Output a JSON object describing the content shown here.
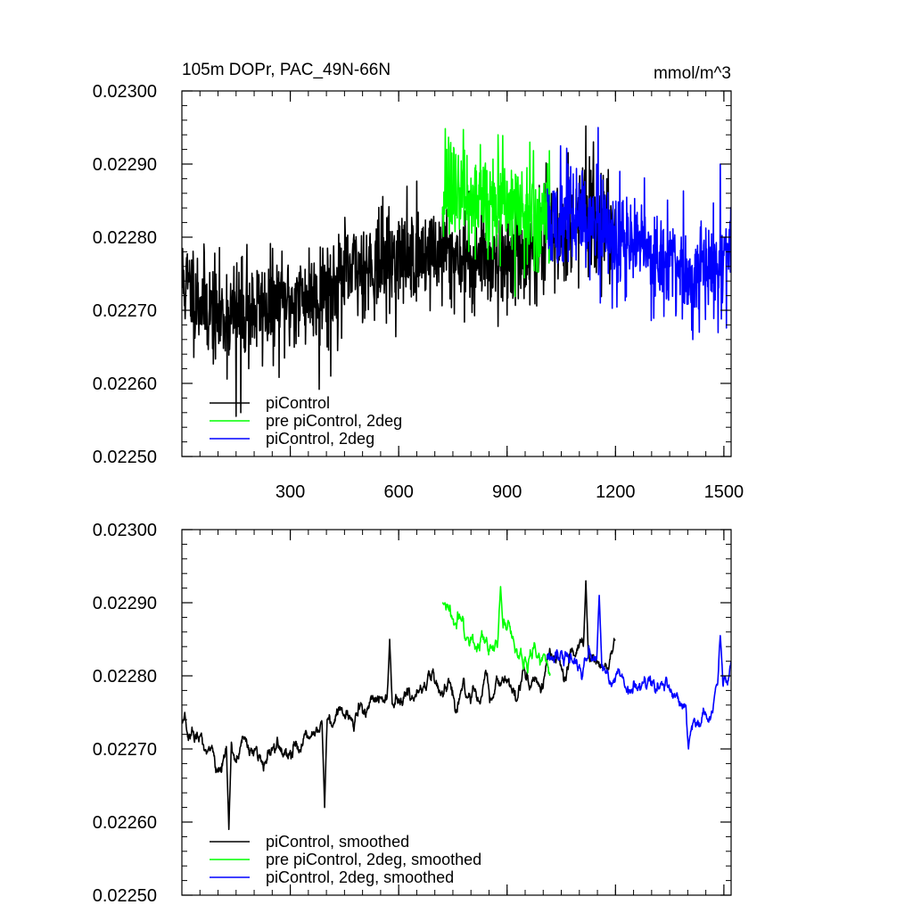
{
  "figure": {
    "title_left": "105m DOPr, PAC_49N-66N",
    "title_right": "mmol/m^3"
  },
  "chart_data": [
    {
      "type": "line",
      "panel": "top",
      "xlim": [
        0,
        1520
      ],
      "ylim": [
        0.0225,
        0.023
      ],
      "x_major_ticks": [
        300,
        600,
        900,
        1200,
        1500
      ],
      "x_tick_labels": [
        "300",
        "600",
        "900",
        "1200",
        "1500"
      ],
      "x_minor_step": 50,
      "y_major_ticks": [
        0.0225,
        0.0226,
        0.0227,
        0.0228,
        0.0229,
        0.023
      ],
      "y_tick_labels": [
        "0.02250",
        "0.02260",
        "0.02270",
        "0.02280",
        "0.02290",
        "0.02300"
      ],
      "y_minor_step": 2e-05,
      "legend": [
        "piControl",
        "pre piControl, 2deg",
        "piControl, 2deg"
      ],
      "legend_position": "bottom-left",
      "series": [
        {
          "name": "piControl",
          "color": "#000000",
          "x_range": [
            1,
            1200
          ],
          "anchors": [
            [
              1,
              0.02274
            ],
            [
              100,
              0.02269
            ],
            [
              200,
              0.0227
            ],
            [
              300,
              0.02271
            ],
            [
              400,
              0.02273
            ],
            [
              500,
              0.02276
            ],
            [
              600,
              0.02277
            ],
            [
              700,
              0.02278
            ],
            [
              800,
              0.02277
            ],
            [
              900,
              0.02277
            ],
            [
              1000,
              0.02279
            ],
            [
              1100,
              0.02283
            ],
            [
              1200,
              0.02281
            ]
          ],
          "noise": 3.5e-05,
          "extremes": [
            [
              150,
              0.022555
            ],
            [
              163,
              0.02256
            ],
            [
              380,
              0.022592
            ],
            [
              180,
              0.02279
            ],
            [
              412,
              0.02261
            ],
            [
              1118,
              0.022952
            ],
            [
              1128,
              0.02291
            ]
          ]
        },
        {
          "name": "pre piControl, 2deg",
          "color": "#00ff00",
          "x_range": [
            721,
            1020
          ],
          "anchors": [
            [
              721,
              0.02287
            ],
            [
              800,
              0.02285
            ],
            [
              900,
              0.02285
            ],
            [
              950,
              0.02283
            ],
            [
              1020,
              0.02282
            ]
          ],
          "noise": 3.5e-05,
          "extremes": [
            [
              733,
              0.02292
            ],
            [
              875,
              0.02294
            ],
            [
              888,
              0.022939
            ],
            [
              963,
              0.02293
            ],
            [
              812,
              0.02277
            ]
          ]
        },
        {
          "name": "piControl, 2deg",
          "color": "#0000ff",
          "x_range": [
            1011,
            1520
          ],
          "anchors": [
            [
              1011,
              0.02281
            ],
            [
              1100,
              0.02282
            ],
            [
              1200,
              0.0228
            ],
            [
              1300,
              0.02278
            ],
            [
              1400,
              0.02274
            ],
            [
              1460,
              0.02276
            ],
            [
              1520,
              0.02278
            ]
          ],
          "noise": 3.5e-05,
          "extremes": [
            [
              1068,
              0.0229
            ],
            [
              1152,
              0.02295
            ],
            [
              1212,
              0.02289
            ],
            [
              1490,
              0.0229
            ],
            [
              1414,
              0.02266
            ],
            [
              1432,
              0.02267
            ],
            [
              1158,
              0.02271
            ]
          ]
        }
      ]
    },
    {
      "type": "line",
      "panel": "bottom",
      "xlim": [
        0,
        1520
      ],
      "ylim": [
        0.0225,
        0.023
      ],
      "x_major_ticks": [
        300,
        600,
        900,
        1200,
        1500
      ],
      "x_minor_step": 50,
      "y_major_ticks": [
        0.0225,
        0.0226,
        0.0227,
        0.0228,
        0.0229,
        0.023
      ],
      "y_tick_labels": [
        "0.02250",
        "0.02260",
        "0.02270",
        "0.02280",
        "0.02290",
        "0.02300"
      ],
      "y_minor_step": 2e-05,
      "legend": [
        "piControl, smoothed",
        "pre piControl, 2deg, smoothed",
        "piControl, 2deg, smoothed"
      ],
      "legend_position": "bottom-left",
      "series": [
        {
          "name": "piControl, smoothed",
          "color": "#000000",
          "x_range": [
            1,
            1200
          ],
          "anchors": [
            [
              1,
              0.02273
            ],
            [
              100,
              0.02268
            ],
            [
              200,
              0.02269
            ],
            [
              300,
              0.0227
            ],
            [
              400,
              0.02273
            ],
            [
              500,
              0.02276
            ],
            [
              600,
              0.02277
            ],
            [
              700,
              0.02278
            ],
            [
              800,
              0.02278
            ],
            [
              900,
              0.02278
            ],
            [
              1000,
              0.0228
            ],
            [
              1100,
              0.02283
            ],
            [
              1200,
              0.02282
            ]
          ],
          "noise": 2.2e-05,
          "extremes": [
            [
              8,
              0.02275
            ],
            [
              130,
              0.02259
            ],
            [
              395,
              0.02262
            ],
            [
              1118,
              0.02293
            ],
            [
              575,
              0.02285
            ]
          ]
        },
        {
          "name": "pre piControl, 2deg, smoothed",
          "color": "#00ff00",
          "x_range": [
            721,
            1020
          ],
          "anchors": [
            [
              721,
              0.02289
            ],
            [
              800,
              0.02285
            ],
            [
              900,
              0.02285
            ],
            [
              950,
              0.02284
            ],
            [
              1020,
              0.02282
            ]
          ],
          "noise": 2.2e-05,
          "extremes": [
            [
              722,
              0.0229
            ],
            [
              882,
              0.022922
            ]
          ]
        },
        {
          "name": "piControl, 2deg, smoothed",
          "color": "#0000ff",
          "x_range": [
            1011,
            1520
          ],
          "anchors": [
            [
              1011,
              0.02281
            ],
            [
              1100,
              0.02282
            ],
            [
              1200,
              0.02281
            ],
            [
              1300,
              0.02279
            ],
            [
              1400,
              0.02274
            ],
            [
              1460,
              0.02276
            ],
            [
              1520,
              0.02278
            ]
          ],
          "noise": 2.2e-05,
          "extremes": [
            [
              1155,
              0.02291
            ],
            [
              1402,
              0.0227
            ],
            [
              1490,
              0.022855
            ],
            [
              1520,
              0.02282
            ]
          ]
        }
      ]
    }
  ]
}
